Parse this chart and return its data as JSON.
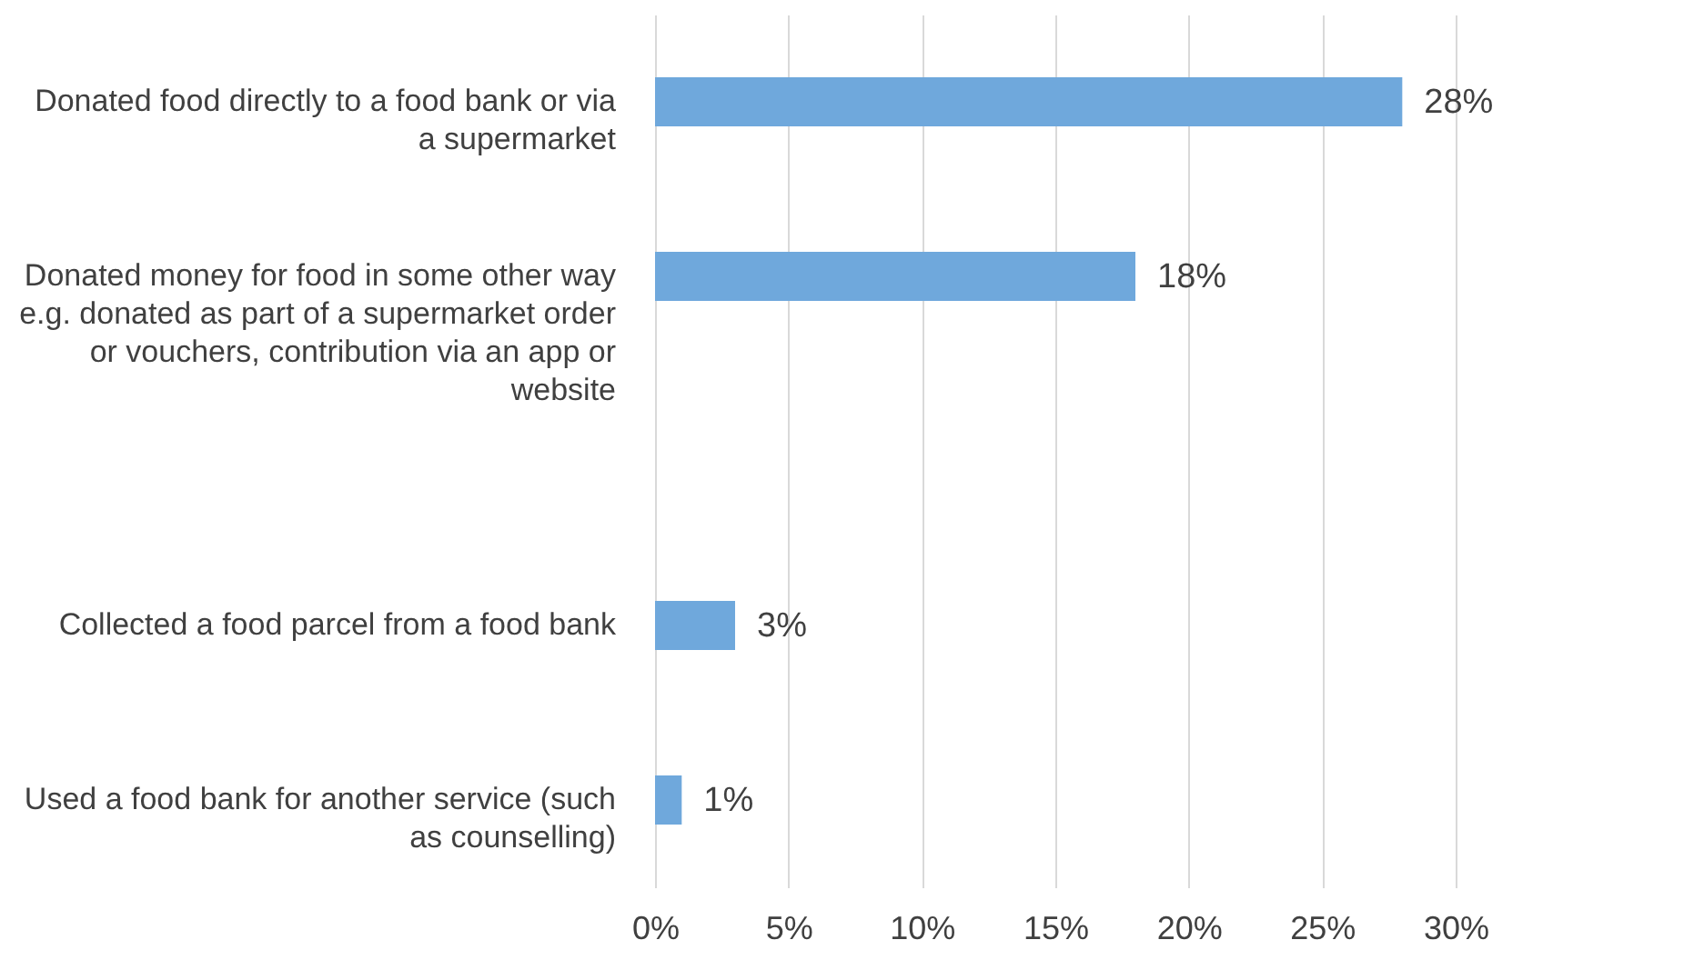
{
  "chart_data": {
    "type": "bar",
    "orientation": "horizontal",
    "categories": [
      "Donated food directly to a food bank or via a supermarket",
      "Donated money for food in some other way e.g. donated as part of a supermarket order or vouchers, contribution via an app or website",
      null,
      "Collected a food parcel from a food bank",
      "Used a food bank for another service (such as counselling)"
    ],
    "values": [
      28,
      18,
      null,
      3,
      1
    ],
    "value_labels": [
      "28%",
      "18%",
      null,
      "3%",
      "1%"
    ],
    "color": "#6fa8dc",
    "xlim": [
      0,
      30
    ],
    "xticks": [
      {
        "value": 0,
        "label": "0%"
      },
      {
        "value": 5,
        "label": "5%"
      },
      {
        "value": 10,
        "label": "10%"
      },
      {
        "value": 15,
        "label": "15%"
      },
      {
        "value": 20,
        "label": "20%"
      },
      {
        "value": 25,
        "label": "25%"
      },
      {
        "value": 30,
        "label": "30%"
      }
    ],
    "grid": "x"
  }
}
